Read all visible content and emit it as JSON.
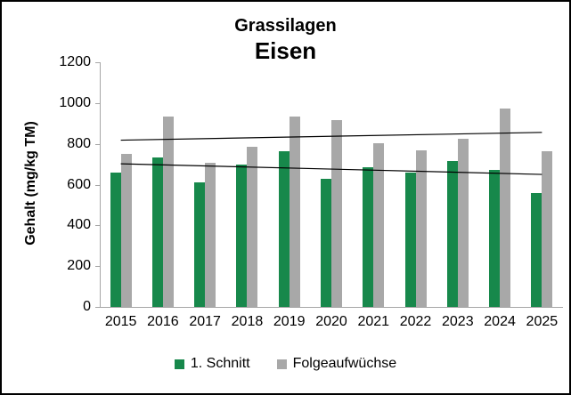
{
  "chart_data": {
    "type": "bar",
    "title": "Grassilagen",
    "subtitle": "Eisen",
    "ylabel": "Gehalt (mg/kg TM)",
    "xlabel": "",
    "ylim": [
      0,
      1200
    ],
    "yticks": [
      0,
      200,
      400,
      600,
      800,
      1000,
      1200
    ],
    "grid": false,
    "legend_position": "bottom",
    "categories": [
      "2015",
      "2016",
      "2017",
      "2018",
      "2019",
      "2020",
      "2021",
      "2022",
      "2023",
      "2024",
      "2025"
    ],
    "series": [
      {
        "name": "1. Schnitt",
        "color": "#17884b",
        "values": [
          660,
          735,
          610,
          700,
          765,
          630,
          685,
          660,
          715,
          670,
          560
        ]
      },
      {
        "name": "Folgeaufwüchse",
        "color": "#a8a8a8",
        "values": [
          750,
          935,
          705,
          785,
          935,
          915,
          805,
          770,
          825,
          975,
          765
        ]
      }
    ],
    "trendlines": [
      {
        "name": "trend-1-schnitt",
        "series": "1. Schnitt",
        "start_value": 702,
        "end_value": 650,
        "color": "#000000"
      },
      {
        "name": "trend-folgeaufwuechse",
        "series": "Folgeaufwüchse",
        "start_value": 818,
        "end_value": 856,
        "color": "#000000"
      }
    ],
    "axis_color": "#a6a6a6"
  }
}
